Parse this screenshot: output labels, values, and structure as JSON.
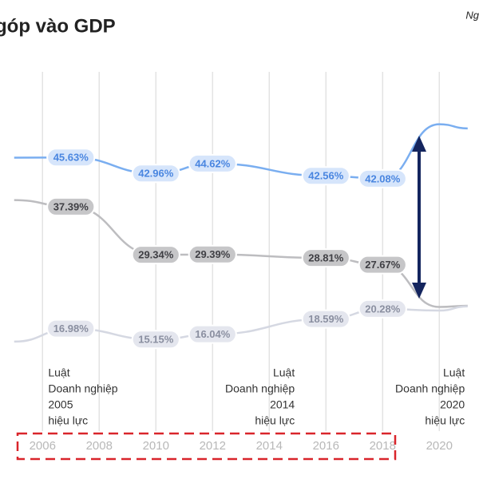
{
  "chart_data": {
    "type": "line",
    "title": "góp vào GDP",
    "corner_text": "Ng",
    "x": [
      2005,
      2007,
      2010,
      2012,
      2016,
      2018,
      2020,
      2021
    ],
    "xlim": [
      2004.5,
      2021.4
    ],
    "ylim": [
      -8.2,
      72
    ],
    "xticks": [
      2006,
      2008,
      2010,
      2012,
      2014,
      2016,
      2018,
      2020
    ],
    "grid": true,
    "series": [
      {
        "color": "#7aaef0",
        "label_bg": "#d6e5fb",
        "label_color": "#4a86e0",
        "values": [
          45.6,
          45.63,
          42.96,
          44.62,
          42.56,
          42.08,
          51.2,
          50.5
        ],
        "value_labels": [
          null,
          "45.63%",
          "42.96%",
          "44.62%",
          "42.56%",
          "42.08%",
          null,
          null
        ]
      },
      {
        "color": "#bdbdc0",
        "label_bg": "#c6c6c8",
        "label_color": "#3f3f44",
        "values": [
          38.5,
          37.39,
          29.34,
          29.39,
          28.81,
          27.67,
          20.6,
          20.8
        ],
        "value_labels": [
          null,
          "37.39%",
          "29.34%",
          "29.39%",
          "28.81%",
          "27.67%",
          null,
          null
        ]
      },
      {
        "color": "#d5d8e2",
        "label_bg": "#e4e6ee",
        "label_color": "#8a8fa0",
        "values": [
          14.8,
          16.98,
          15.15,
          16.04,
          18.59,
          20.28,
          20.0,
          20.7
        ],
        "value_labels": [
          null,
          "16.98%",
          "15.15%",
          "16.04%",
          "18.59%",
          "20.28%",
          null,
          null
        ]
      }
    ],
    "annotations": [
      {
        "x": 2006.2,
        "anchor": "start",
        "lines": [
          "Luật",
          "Doanh nghiệp",
          "2005",
          "hiệu lực"
        ]
      },
      {
        "x": 2014.9,
        "anchor": "end",
        "lines": [
          "Luật",
          "Doanh nghiệp",
          "2014",
          "hiệu lực"
        ]
      },
      {
        "x": 2020.9,
        "anchor": "end",
        "lines": [
          "Luật",
          "Doanh nghiệp",
          "2020",
          "hiệu lực"
        ]
      }
    ]
  }
}
